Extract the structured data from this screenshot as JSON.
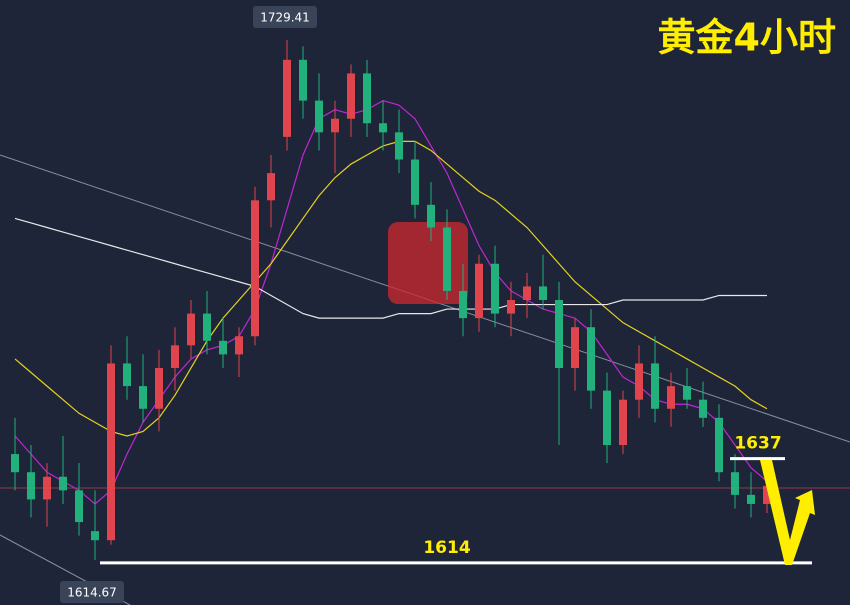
{
  "chart_data": {
    "type": "candlestick",
    "title": "黄金4小时",
    "up_color": "#e0444c",
    "down_color": "#22b07d",
    "ylim": [
      1604.7,
      1738.2
    ],
    "candles": [
      [
        1638,
        1646,
        1630,
        1634
      ],
      [
        1634,
        1640,
        1624,
        1628
      ],
      [
        1628,
        1636,
        1622,
        1633
      ],
      [
        1633,
        1642,
        1627,
        1630
      ],
      [
        1630,
        1636,
        1620,
        1623
      ],
      [
        1621,
        1630,
        1614.67,
        1619
      ],
      [
        1619,
        1662,
        1618,
        1658
      ],
      [
        1658,
        1664,
        1650,
        1653
      ],
      [
        1653,
        1660,
        1645,
        1648
      ],
      [
        1648,
        1661,
        1643,
        1657
      ],
      [
        1657,
        1666,
        1652,
        1662
      ],
      [
        1662,
        1672,
        1659,
        1669
      ],
      [
        1669,
        1674,
        1660,
        1663
      ],
      [
        1663,
        1668,
        1657,
        1660
      ],
      [
        1660,
        1666,
        1655,
        1664
      ],
      [
        1664,
        1697,
        1662,
        1694
      ],
      [
        1694,
        1704,
        1688,
        1700
      ],
      [
        1708,
        1729.41,
        1705,
        1725
      ],
      [
        1725,
        1728,
        1712,
        1716
      ],
      [
        1716,
        1722,
        1705,
        1709
      ],
      [
        1709,
        1716,
        1700,
        1712
      ],
      [
        1712,
        1724,
        1708,
        1722
      ],
      [
        1722,
        1725,
        1708,
        1711
      ],
      [
        1711,
        1716,
        1705,
        1709
      ],
      [
        1709,
        1714,
        1700,
        1703
      ],
      [
        1703,
        1707,
        1690,
        1693
      ],
      [
        1693,
        1698,
        1685,
        1688
      ],
      [
        1688,
        1692,
        1672,
        1674
      ],
      [
        1674,
        1680,
        1664,
        1668
      ],
      [
        1668,
        1682,
        1665,
        1680
      ],
      [
        1680,
        1684,
        1666,
        1669
      ],
      [
        1669,
        1676,
        1664,
        1672
      ],
      [
        1672,
        1678,
        1668,
        1675
      ],
      [
        1675,
        1682,
        1670,
        1672
      ],
      [
        1672,
        1676,
        1640,
        1657
      ],
      [
        1657,
        1668,
        1652,
        1666
      ],
      [
        1666,
        1670,
        1648,
        1652
      ],
      [
        1652,
        1656,
        1636,
        1640
      ],
      [
        1640,
        1652,
        1638,
        1650
      ],
      [
        1650,
        1662,
        1646,
        1658
      ],
      [
        1658,
        1664,
        1645,
        1648
      ],
      [
        1648,
        1656,
        1644,
        1653
      ],
      [
        1653,
        1657,
        1648,
        1650
      ],
      [
        1650,
        1654,
        1644,
        1646
      ],
      [
        1646,
        1649,
        1632,
        1634
      ],
      [
        1634,
        1638,
        1626,
        1629
      ],
      [
        1629,
        1634,
        1624,
        1627
      ],
      [
        1627,
        1636,
        1625,
        1631
      ]
    ],
    "series": [
      {
        "color": "#c026d3",
        "values": [
          1642,
          1638,
          1634,
          1632,
          1630,
          1627,
          1630,
          1638,
          1645,
          1650,
          1655,
          1659,
          1661,
          1662,
          1664,
          1670,
          1680,
          1692,
          1704,
          1712,
          1714,
          1713,
          1714,
          1716,
          1715,
          1712,
          1706,
          1700,
          1692,
          1684,
          1678,
          1674,
          1672,
          1670,
          1669,
          1668,
          1665,
          1660,
          1655,
          1653,
          1650,
          1649,
          1649,
          1648,
          1645,
          1640,
          1635,
          1632
        ]
      },
      {
        "color": "#e6d21e",
        "values": [
          1659,
          1656,
          1653,
          1650,
          1647,
          1645,
          1643,
          1642,
          1643,
          1646,
          1651,
          1657,
          1663,
          1668,
          1672,
          1676,
          1680,
          1685,
          1690,
          1695,
          1699,
          1702,
          1704,
          1706,
          1707,
          1707,
          1705,
          1702,
          1699,
          1696,
          1694,
          1691,
          1688,
          1684,
          1680,
          1676,
          1673,
          1670,
          1667,
          1665,
          1663,
          1661,
          1659,
          1657,
          1655,
          1653,
          1650,
          1648
        ]
      },
      {
        "color": "#e8e8e8",
        "values": [
          1690,
          1689,
          1688,
          1687,
          1686,
          1685,
          1684,
          1683,
          1682,
          1681,
          1680,
          1679,
          1678,
          1677,
          1676,
          1675,
          1673,
          1671,
          1669,
          1668,
          1668,
          1668,
          1668,
          1668,
          1669,
          1669,
          1669,
          1670,
          1670,
          1670,
          1670,
          1671,
          1671,
          1671,
          1671,
          1671,
          1671,
          1671,
          1672,
          1672,
          1672,
          1672,
          1672,
          1672,
          1673,
          1673,
          1673,
          1673
        ]
      }
    ],
    "levels": [
      1637,
      1614
    ]
  }
}
